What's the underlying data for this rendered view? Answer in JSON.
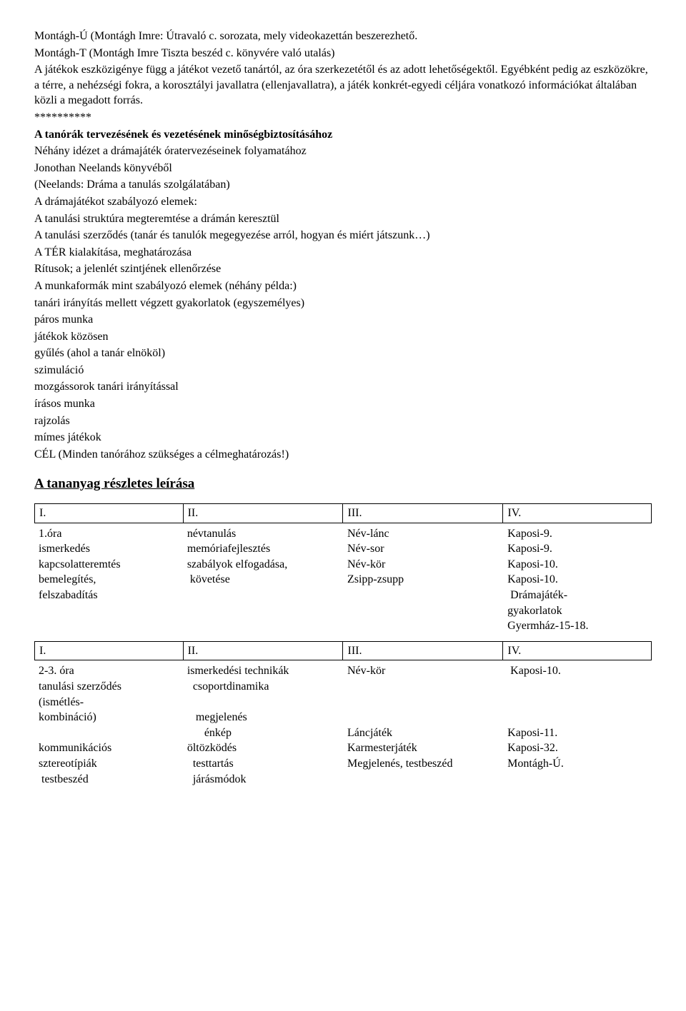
{
  "intro": {
    "p1": "Montágh-Ú (Montágh Imre: Útravaló c. sorozata, mely videokazettán beszerezhető.",
    "p2": "Montágh-T (Montágh Imre Tiszta beszéd c. könyvére való utalás)",
    "p3": "A játékok eszközigénye függ a játékot vezető tanártól, az óra szerkezetétől és az adott lehetőségektől. Egyébként pedig az eszközökre, a térre, a nehézségi fokra, a korosztályi javallatra (ellenjavallatra), a játék konkrét-egyedi céljára vonatkozó információkat általában közli a megadott forrás.",
    "stars": "**********"
  },
  "block": {
    "title": "A tanórák tervezésének és vezetésének minőségbiztosításához",
    "l1": "Néhány idézet a drámajáték óratervezéseinek folyamatához",
    "l2": "Jonothan Neelands könyvéből",
    "l3": "(Neelands: Dráma a tanulás szolgálatában)",
    "l4": "A drámajátékot szabályozó elemek:",
    "l5": "A tanulási struktúra megteremtése a drámán keresztül",
    "l6": "A tanulási szerződés (tanár és tanulók megegyezése arról, hogyan és miért játszunk…)",
    "l7": "A TÉR kialakítása, meghatározása",
    "l8": "Rítusok; a jelenlét szintjének ellenőrzése",
    "l9": "A munkaformák mint szabályozó elemek (néhány példa:)",
    "l10": "tanári irányítás mellett végzett gyakorlatok (egyszemélyes)",
    "l11": "páros munka",
    "l12": "játékok közösen",
    "l13": "gyűlés (ahol a tanár elnököl)",
    "l14": "szimuláció",
    "l15": "mozgássorok tanári irányítással",
    "l16": "írásos munka",
    "l17": "rajzolás",
    "l18": "mímes játékok",
    "l19": "CÉL (Minden tanórához szükséges a célmeghatározás!)"
  },
  "section_title": "A tananyag részletes leírása",
  "headers": {
    "h1": "I.",
    "h2": "II.",
    "h3": "III.",
    "h4": "IV."
  },
  "table1": {
    "col0": "1.óra\nismerkedés\nkapcsolatteremtés\nbemelegítés,\nfelszabadítás",
    "col1": "névtanulás\nmemóriafejlesztés\nszabályok elfogadása,\n követése",
    "col2": "Név-lánc\nNév-sor\nNév-kör\nZsipp-zsupp",
    "col3": "Kaposi-9.\nKaposi-9.\nKaposi-10.\nKaposi-10.\n Drámajáték-\ngyakorlatok\nGyermház-15-18."
  },
  "table2": {
    "col0": "2-3. óra\ntanulási szerződés\n(ismétlés-\nkombináció)\n\nkommunikációs\nsztereotípiák\n testbeszéd",
    "col1": "ismerkedési technikák\n  csoportdinamika\n\n   megjelenés\n      énkép\nöltözködés\n  testtartás\n  járásmódok",
    "col2": "Név-kör\n\n\n\nLáncjáték\nKarmesterjáték\nMegjelenés, testbeszéd",
    "col3": " Kaposi-10.\n\n\n\nKaposi-11.\nKaposi-32.\nMontágh-Ú."
  }
}
